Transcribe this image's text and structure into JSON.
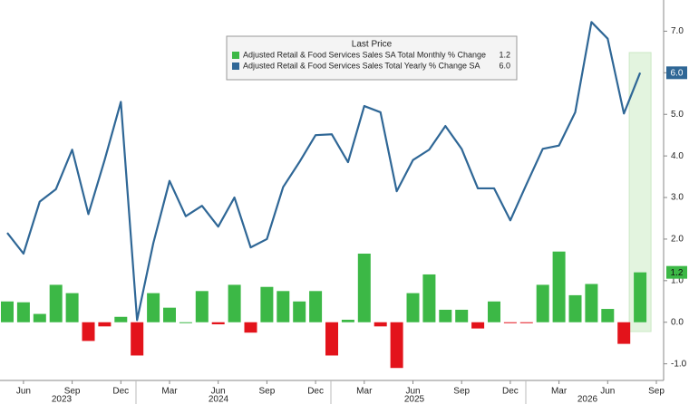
{
  "chart_data": {
    "type": "combo",
    "categories": [
      null,
      "Jun",
      null,
      null,
      "Sep",
      null,
      null,
      "Dec",
      null,
      null,
      "Mar",
      null,
      null,
      "Jun",
      null,
      null,
      "Sep",
      null,
      null,
      "Dec",
      null,
      null,
      "Mar",
      null,
      null,
      "Jun",
      null,
      null,
      "Sep",
      null,
      null,
      "Dec",
      null,
      null,
      "Mar",
      null,
      null,
      "Jun",
      null,
      null,
      "Sep"
    ],
    "years": [
      "2023",
      "2024",
      "2025",
      "2026"
    ],
    "legend_title": "Last Price",
    "series": [
      {
        "name": "Adjusted Retail & Food Services Sales SA Total Monthly % Change",
        "type": "bar",
        "color": "#3cb846",
        "negative_color": "#e3131b",
        "last_value_label": "1.2",
        "values": [
          0.5,
          0.48,
          0.2,
          0.9,
          0.7,
          -0.45,
          -0.1,
          0.13,
          -0.8,
          0.7,
          0.35,
          0.0,
          0.75,
          -0.05,
          0.9,
          -0.25,
          0.85,
          0.75,
          0.5,
          0.75,
          -0.8,
          0.06,
          1.65,
          -0.1,
          -1.1,
          0.7,
          1.15,
          0.3,
          0.3,
          -0.15,
          0.5,
          -0.02,
          -0.02,
          0.9,
          1.7,
          0.65,
          0.92,
          0.32,
          -0.52,
          1.2,
          null
        ]
      },
      {
        "name": "Adjusted Retail & Food Services Sales Total Yearly % Change SA",
        "type": "line",
        "color": "#2f6796",
        "last_value_label": "6.0",
        "values": [
          2.15,
          1.65,
          2.9,
          3.2,
          4.15,
          2.6,
          3.9,
          5.3,
          0.05,
          1.9,
          3.4,
          2.55,
          2.8,
          2.3,
          3.0,
          1.8,
          2.0,
          3.25,
          3.85,
          4.5,
          4.52,
          3.85,
          5.2,
          5.05,
          3.15,
          3.9,
          4.15,
          4.72,
          4.17,
          3.22,
          3.22,
          2.45,
          3.32,
          4.17,
          4.25,
          5.05,
          7.22,
          6.82,
          5.02,
          6.0,
          null
        ]
      }
    ],
    "ylim": [
      -1.4,
      7.75
    ],
    "yticks": [
      {
        "value": -1,
        "label": "-1.0"
      },
      {
        "value": 0,
        "label": "0.0"
      },
      {
        "value": 1,
        "label": "1.0"
      },
      {
        "value": 2,
        "label": "2.0"
      },
      {
        "value": 3,
        "label": "3.0"
      },
      {
        "value": 4,
        "label": "4.0"
      },
      {
        "value": 5,
        "label": "5.0"
      },
      {
        "value": 6,
        "label": "6.0"
      },
      {
        "value": 7,
        "label": "7.0"
      }
    ],
    "grid": false
  }
}
